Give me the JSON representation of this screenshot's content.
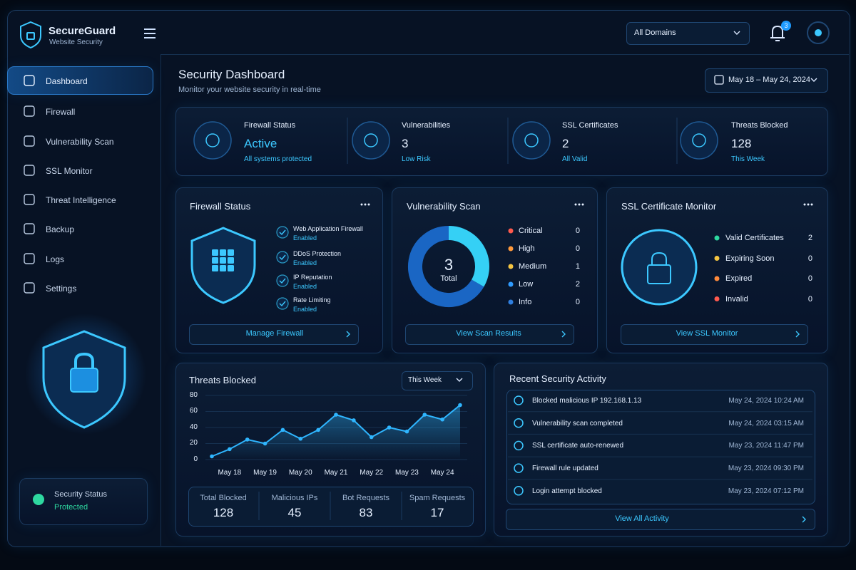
{
  "brand": {
    "name": "SecureGuard",
    "tagline": "Website Security"
  },
  "topbar": {
    "domain_select": "All Domains",
    "notifications": 3
  },
  "nav": [
    "Dashboard",
    "Firewall",
    "Vulnerability Scan",
    "SSL Monitor",
    "Threat Intelligence",
    "Backup",
    "Logs",
    "Settings"
  ],
  "status": {
    "label": "Security Status",
    "value": "Protected"
  },
  "header": {
    "title": "Security Dashboard",
    "subtitle": "Monitor your website security in real-time",
    "date_range": "May 18 – May 24, 2024"
  },
  "kpis": [
    {
      "label": "Firewall Status",
      "value": "Active",
      "note": "All systems protected"
    },
    {
      "label": "Vulnerabilities",
      "value": 3,
      "note": "Low Risk"
    },
    {
      "label": "SSL Certificates",
      "value": 2,
      "note": "All Valid"
    },
    {
      "label": "Threats Blocked",
      "value": 128,
      "note": "This Week"
    }
  ],
  "firewall": {
    "title": "Firewall Status",
    "items": [
      {
        "name": "Web Application Firewall",
        "state": "Enabled"
      },
      {
        "name": "DDoS Protection",
        "state": "Enabled"
      },
      {
        "name": "IP Reputation",
        "state": "Enabled"
      },
      {
        "name": "Rate Limiting",
        "state": "Enabled"
      }
    ],
    "button": "Manage Firewall"
  },
  "chart_data": [
    {
      "type": "donut",
      "title": "Vulnerability Scan",
      "total": 3,
      "total_label": "Total",
      "categories": [
        "Critical",
        "High",
        "Medium",
        "Low",
        "Info"
      ],
      "values": [
        0,
        0,
        1,
        2,
        0
      ],
      "colors": [
        "#ff5a4e",
        "#ff9a3c",
        "#f5c542",
        "#2f9bff",
        "#2f7fe0"
      ],
      "ring_colors": [
        "#ff5a4e",
        "#ff9a3c",
        "#35d0f5",
        "#1a66c4",
        "#2f7fe0"
      ],
      "button": "View Scan Results"
    },
    {
      "type": "line",
      "title": "Threats Blocked",
      "period": "This Week",
      "categories": [
        null,
        "May 18",
        null,
        "May 19",
        null,
        "May 20",
        null,
        "May 21",
        null,
        "May 22",
        null,
        "May 23",
        null,
        "May 24",
        null
      ],
      "values": [
        4,
        13,
        25,
        20,
        37,
        26,
        37,
        56,
        49,
        28,
        40,
        35,
        56,
        50,
        68
      ],
      "color": "#2fb6ff",
      "ylim": [
        0,
        80
      ],
      "yticks": [
        0,
        20,
        40,
        60,
        80
      ],
      "grid": true
    }
  ],
  "threat_totals": [
    {
      "label": "Total Blocked",
      "value": 128
    },
    {
      "label": "Malicious IPs",
      "value": 45
    },
    {
      "label": "Bot Requests",
      "value": 83
    },
    {
      "label": "Spam Requests",
      "value": 17
    }
  ],
  "ssl": {
    "title": "SSL Certificate Monitor",
    "items": [
      {
        "name": "Valid Certificates",
        "count": 2,
        "color": "#2ed8a0"
      },
      {
        "name": "Expiring Soon",
        "count": 0,
        "color": "#f5c542"
      },
      {
        "name": "Expired",
        "count": 0,
        "color": "#ff8a3c"
      },
      {
        "name": "Invalid",
        "count": 0,
        "color": "#ff5a4e"
      }
    ],
    "button": "View SSL Monitor"
  },
  "activity": {
    "title": "Recent Security Activity",
    "items": [
      {
        "text": "Blocked malicious IP 192.168.1.13",
        "time": "May 24, 2024 10:24 AM"
      },
      {
        "text": "Vulnerability scan completed",
        "time": "May 24, 2024 03:15 AM"
      },
      {
        "text": "SSL certificate auto-renewed",
        "time": "May 23, 2024 11:47 PM"
      },
      {
        "text": "Firewall rule updated",
        "time": "May 23, 2024 09:30 PM"
      },
      {
        "text": "Login attempt blocked",
        "time": "May 23, 2024 07:12 PM"
      }
    ],
    "button": "View All Activity"
  }
}
